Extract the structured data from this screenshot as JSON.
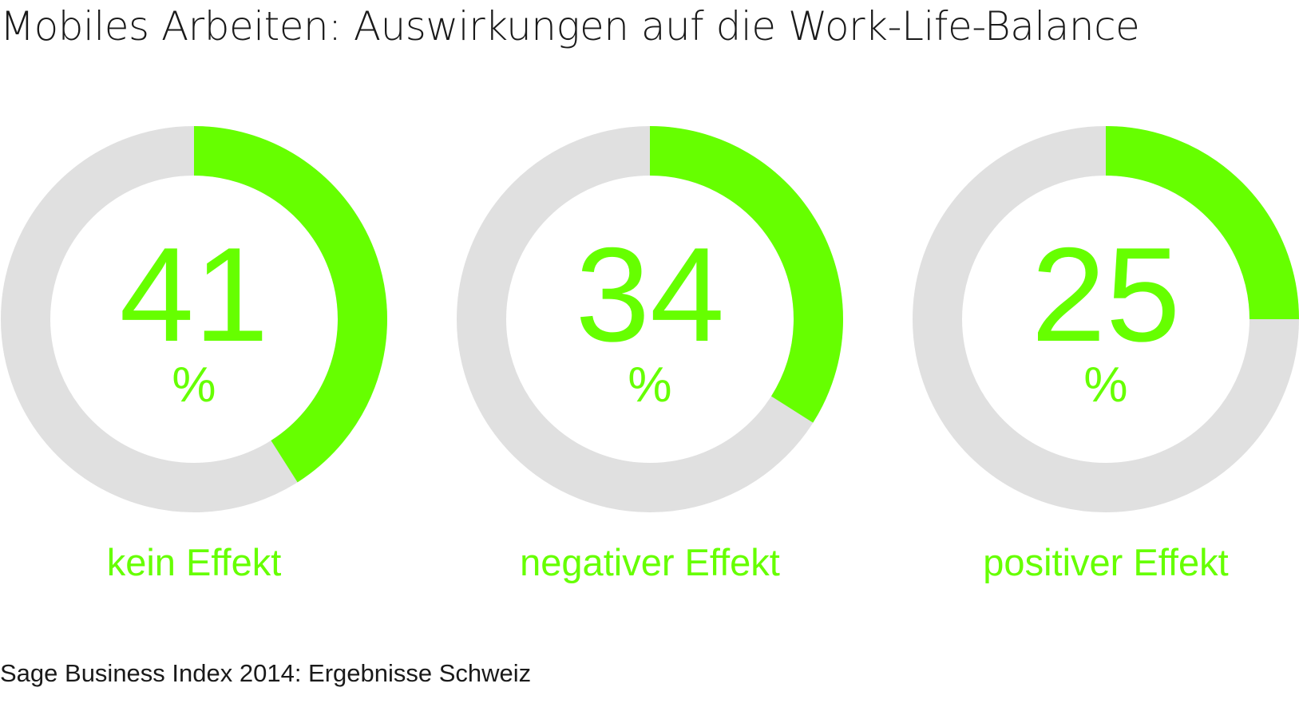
{
  "title": "Mobiles Arbeiten: Auswirkungen auf die Work-Life-Balance",
  "source": "Sage Business Index 2014: Ergebnisse Schweiz",
  "colors": {
    "accent": "#66ff00",
    "track": "#e0e0e0",
    "text": "#1a1a1a"
  },
  "chart_data": {
    "type": "pie",
    "subtype": "donut",
    "unit": "%",
    "categories": [
      "kein Effekt",
      "negativer Effekt",
      "positiver Effekt"
    ],
    "values": [
      41,
      34,
      25
    ],
    "value_labels": [
      "41",
      "34",
      "25"
    ],
    "legend": "none",
    "grid": false
  }
}
